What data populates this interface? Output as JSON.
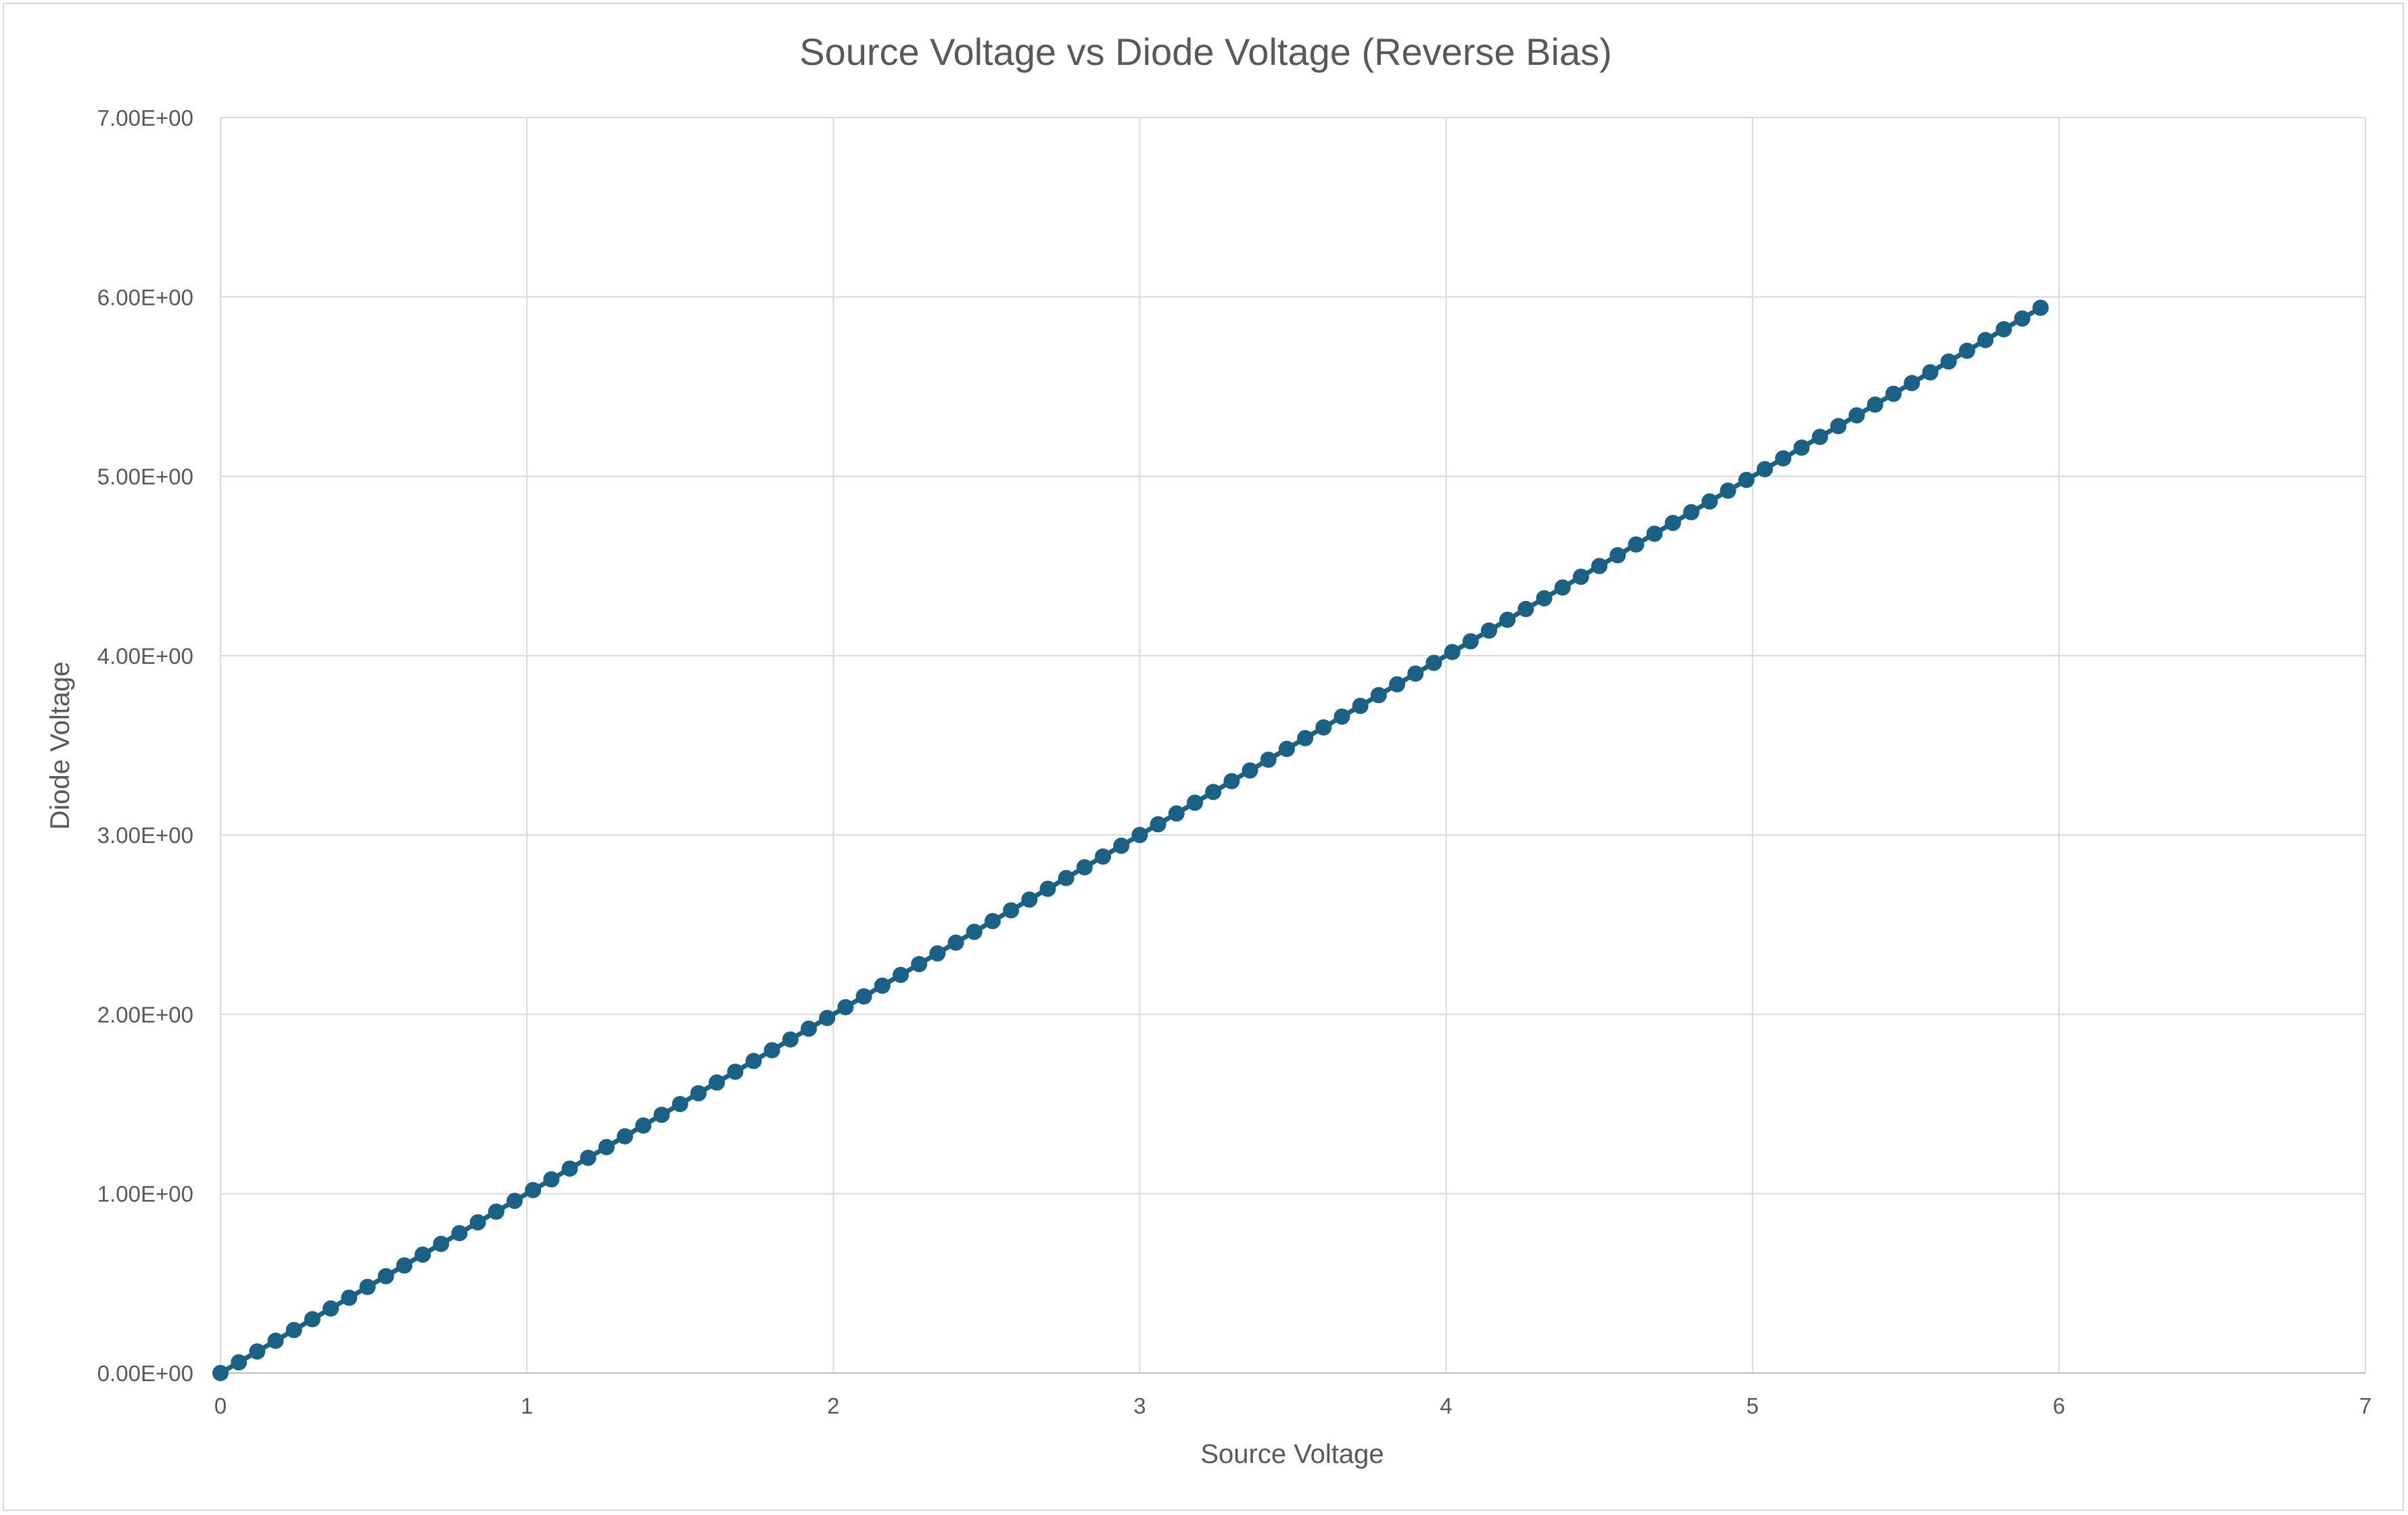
{
  "chart_data": {
    "type": "scatter",
    "title": "Source Voltage vs Diode Voltage (Reverse Bias)",
    "xlabel": "Source Voltage",
    "ylabel": "Diode Voltage",
    "xlim": [
      0,
      7
    ],
    "ylim": [
      0,
      7
    ],
    "x_ticks": [
      "0",
      "1",
      "2",
      "3",
      "4",
      "5",
      "6",
      "7"
    ],
    "y_ticks": [
      "0.00E+00",
      "1.00E+00",
      "2.00E+00",
      "3.00E+00",
      "4.00E+00",
      "5.00E+00",
      "6.00E+00",
      "7.00E+00"
    ],
    "grid": true,
    "legend": "none",
    "marker_color": "#1a6285",
    "line_color": "#1a6285",
    "series": [
      {
        "x": [
          0,
          0.06,
          0.12,
          0.18,
          0.24,
          0.3,
          0.36,
          0.42,
          0.48,
          0.54,
          0.6,
          0.66,
          0.72,
          0.78,
          0.84,
          0.9,
          0.96,
          1.02,
          1.08,
          1.14,
          1.2,
          1.26,
          1.32,
          1.38,
          1.44,
          1.5,
          1.56,
          1.62,
          1.68,
          1.74,
          1.8,
          1.86,
          1.92,
          1.98,
          2.04,
          2.1,
          2.16,
          2.22,
          2.28,
          2.34,
          2.4,
          2.46,
          2.52,
          2.58,
          2.64,
          2.7,
          2.76,
          2.82,
          2.88,
          2.94,
          3,
          3.06,
          3.12,
          3.18,
          3.24,
          3.3,
          3.36,
          3.42,
          3.48,
          3.54,
          3.6,
          3.66,
          3.72,
          3.78,
          3.84,
          3.9,
          3.96,
          4.02,
          4.08,
          4.14,
          4.2,
          4.26,
          4.32,
          4.38,
          4.44,
          4.5,
          4.56,
          4.62,
          4.68,
          4.74,
          4.8,
          4.86,
          4.92,
          4.98,
          5.04,
          5.1,
          5.16,
          5.22,
          5.28,
          5.34,
          5.4,
          5.46,
          5.52,
          5.58,
          5.64,
          5.7,
          5.76,
          5.82,
          5.88,
          5.94
        ],
        "y": [
          0,
          0.06,
          0.12,
          0.18,
          0.24,
          0.3,
          0.36,
          0.42,
          0.48,
          0.54,
          0.6,
          0.66,
          0.72,
          0.78,
          0.84,
          0.9,
          0.96,
          1.02,
          1.08,
          1.14,
          1.2,
          1.26,
          1.32,
          1.38,
          1.44,
          1.5,
          1.56,
          1.62,
          1.68,
          1.74,
          1.8,
          1.86,
          1.92,
          1.98,
          2.04,
          2.1,
          2.16,
          2.22,
          2.28,
          2.34,
          2.4,
          2.46,
          2.52,
          2.58,
          2.64,
          2.7,
          2.76,
          2.82,
          2.88,
          2.94,
          3,
          3.06,
          3.12,
          3.18,
          3.24,
          3.3,
          3.36,
          3.42,
          3.48,
          3.54,
          3.6,
          3.66,
          3.72,
          3.78,
          3.84,
          3.9,
          3.96,
          4.02,
          4.08,
          4.14,
          4.2,
          4.26,
          4.32,
          4.38,
          4.44,
          4.5,
          4.56,
          4.62,
          4.68,
          4.74,
          4.8,
          4.86,
          4.92,
          4.98,
          5.04,
          5.1,
          5.16,
          5.22,
          5.28,
          5.34,
          5.4,
          5.46,
          5.52,
          5.58,
          5.64,
          5.7,
          5.76,
          5.82,
          5.88,
          5.94
        ]
      }
    ]
  }
}
